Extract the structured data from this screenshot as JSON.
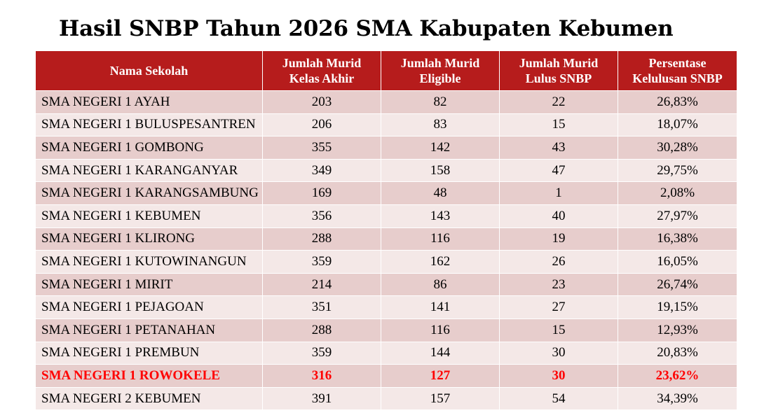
{
  "title": "Hasil SNBP Tahun 2026 SMA Kabupaten Kebumen",
  "colors": {
    "header_bg": "#b61c1c",
    "row_odd": "#e7cdcc",
    "row_even": "#f4e8e7",
    "highlight_text": "#ff0000"
  },
  "table": {
    "headers": [
      {
        "line1": "Nama Sekolah",
        "line2": ""
      },
      {
        "line1": "Jumlah Murid",
        "line2": "Kelas Akhir"
      },
      {
        "line1": "Jumlah Murid",
        "line2": "Eligible"
      },
      {
        "line1": "Jumlah Murid",
        "line2": "Lulus SNBP"
      },
      {
        "line1": "Persentase",
        "line2": "Kelulusan SNBP"
      }
    ],
    "rows": [
      {
        "school": "SMA NEGERI 1 AYAH",
        "kelas_akhir": "203",
        "eligible": "82",
        "lulus": "22",
        "persen": "26,83%",
        "highlight": false
      },
      {
        "school": "SMA NEGERI 1 BULUSPESANTREN",
        "kelas_akhir": "206",
        "eligible": "83",
        "lulus": "15",
        "persen": "18,07%",
        "highlight": false
      },
      {
        "school": "SMA NEGERI 1 GOMBONG",
        "kelas_akhir": "355",
        "eligible": "142",
        "lulus": "43",
        "persen": "30,28%",
        "highlight": false
      },
      {
        "school": "SMA NEGERI 1 KARANGANYAR",
        "kelas_akhir": "349",
        "eligible": "158",
        "lulus": "47",
        "persen": "29,75%",
        "highlight": false
      },
      {
        "school": "SMA NEGERI 1 KARANGSAMBUNG",
        "kelas_akhir": "169",
        "eligible": "48",
        "lulus": "1",
        "persen": "2,08%",
        "highlight": false
      },
      {
        "school": "SMA NEGERI 1 KEBUMEN",
        "kelas_akhir": "356",
        "eligible": "143",
        "lulus": "40",
        "persen": "27,97%",
        "highlight": false
      },
      {
        "school": "SMA NEGERI 1 KLIRONG",
        "kelas_akhir": "288",
        "eligible": "116",
        "lulus": "19",
        "persen": "16,38%",
        "highlight": false
      },
      {
        "school": "SMA NEGERI 1 KUTOWINANGUN",
        "kelas_akhir": "359",
        "eligible": "162",
        "lulus": "26",
        "persen": "16,05%",
        "highlight": false
      },
      {
        "school": "SMA NEGERI 1 MIRIT",
        "kelas_akhir": "214",
        "eligible": "86",
        "lulus": "23",
        "persen": "26,74%",
        "highlight": false
      },
      {
        "school": "SMA NEGERI 1 PEJAGOAN",
        "kelas_akhir": "351",
        "eligible": "141",
        "lulus": "27",
        "persen": "19,15%",
        "highlight": false
      },
      {
        "school": "SMA NEGERI 1 PETANAHAN",
        "kelas_akhir": "288",
        "eligible": "116",
        "lulus": "15",
        "persen": "12,93%",
        "highlight": false
      },
      {
        "school": "SMA NEGERI 1 PREMBUN",
        "kelas_akhir": "359",
        "eligible": "144",
        "lulus": "30",
        "persen": "20,83%",
        "highlight": false
      },
      {
        "school": "SMA NEGERI 1 ROWOKELE",
        "kelas_akhir": "316",
        "eligible": "127",
        "lulus": "30",
        "persen": "23,62%",
        "highlight": true
      },
      {
        "school": "SMA NEGERI 2 KEBUMEN",
        "kelas_akhir": "391",
        "eligible": "157",
        "lulus": "54",
        "persen": "34,39%",
        "highlight": false
      }
    ]
  }
}
